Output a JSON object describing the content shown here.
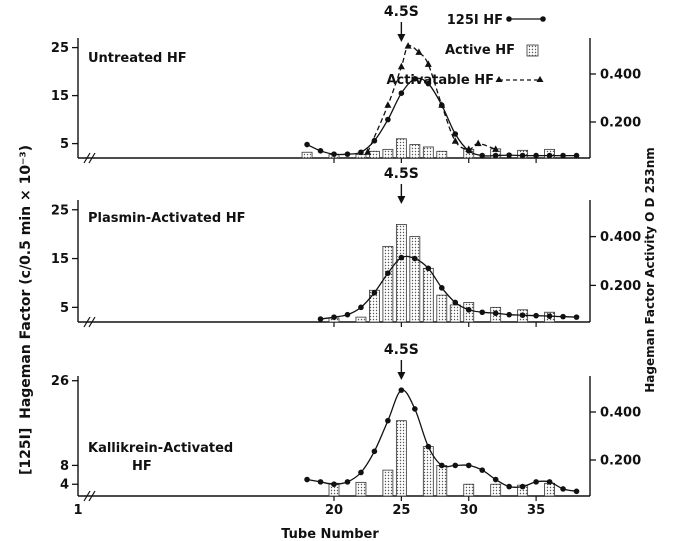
{
  "figure": {
    "x_label": "Tube Number",
    "left_label_prefix": "[125I]",
    "left_label": "Hageman Factor (c/0.5 min × 10⁻³)",
    "right_label": "Hageman Factor Activity O D  253nm"
  },
  "legend": {
    "i125": "125I HF",
    "active": "Active HF",
    "activatable": "Activatable HF"
  },
  "chart_data": [
    {
      "type": "line",
      "title": "Untreated HF",
      "marker_label": "4.5S",
      "marker_x": 25,
      "x_ticks": [],
      "xlim": [
        1,
        39
      ],
      "left_ticks": [
        5,
        15,
        25
      ],
      "ylim_left": [
        2,
        27
      ],
      "right_ticks": [
        "0.200",
        "0.400"
      ],
      "ylim_right": [
        0.05,
        0.55
      ],
      "series": [
        {
          "name": "125I HF",
          "axis": "left",
          "x": [
            18,
            19,
            20,
            21,
            22,
            23,
            24,
            25,
            26,
            27,
            28,
            29,
            30,
            31,
            32,
            33,
            34,
            35,
            36,
            37,
            38
          ],
          "y": [
            4.8,
            3.5,
            2.8,
            2.8,
            3.2,
            5.6,
            10,
            15.5,
            18.5,
            17.5,
            13,
            7,
            3.5,
            2.5,
            2.5,
            2.6,
            2.5,
            2.5,
            2.5,
            2.5,
            2.5
          ]
        },
        {
          "name": "Activatable HF",
          "axis": "left",
          "x": [
            22.5,
            24,
            25,
            25.5,
            26.3,
            27,
            28,
            29,
            30,
            30.7,
            32
          ],
          "y": [
            3.2,
            13,
            21,
            25.3,
            24,
            21.5,
            13,
            5.5,
            3.8,
            5,
            3.8
          ]
        },
        {
          "name": "Active HF",
          "axis": "left",
          "x": [
            18,
            20,
            22,
            23,
            24,
            25,
            26,
            27,
            28,
            30,
            32,
            34,
            36
          ],
          "y": [
            3.2,
            2.7,
            2.7,
            3.4,
            3.8,
            6,
            4.8,
            4.3,
            3.4,
            3.8,
            3.9,
            3.6,
            3.8
          ]
        }
      ]
    },
    {
      "type": "line",
      "title": "Plasmin-Activated HF",
      "marker_label": "4.5S",
      "marker_x": 25,
      "x_ticks": [],
      "xlim": [
        1,
        39
      ],
      "left_ticks": [
        5,
        15,
        25
      ],
      "ylim_left": [
        2,
        27
      ],
      "right_ticks": [
        "0.200",
        "0.400"
      ],
      "ylim_right": [
        0.05,
        0.55
      ],
      "series": [
        {
          "name": "125I HF",
          "axis": "left",
          "x": [
            19,
            20,
            21,
            22,
            23,
            24,
            25,
            26,
            27,
            28,
            29,
            30,
            31,
            32,
            33,
            34,
            35,
            36,
            37,
            38
          ],
          "y": [
            2.6,
            3,
            3.5,
            5,
            8,
            12,
            15.2,
            15,
            13,
            9,
            6,
            4.5,
            4,
            3.8,
            3.5,
            3.4,
            3.3,
            3.2,
            3.1,
            3
          ]
        },
        {
          "name": "Active HF",
          "axis": "left",
          "x": [
            20,
            22,
            23,
            24,
            25,
            26,
            27,
            28,
            29,
            30,
            32,
            34,
            36
          ],
          "y": [
            2.8,
            3,
            8.5,
            17.5,
            22,
            19.5,
            13,
            7.5,
            5.5,
            6,
            5,
            4.5,
            4
          ]
        }
      ]
    },
    {
      "type": "line",
      "title": "Kallikrein-Activated HF",
      "marker_label": "4.5S",
      "marker_x": 25,
      "x_ticks": [
        "1",
        "20",
        "25",
        "30",
        "35"
      ],
      "xlim": [
        1,
        39
      ],
      "left_ticks": [
        4,
        8,
        26
      ],
      "ylim_left": [
        1.5,
        27
      ],
      "right_ticks": [
        "0.200",
        "0.400"
      ],
      "ylim_right": [
        0.05,
        0.55
      ],
      "series": [
        {
          "name": "125I HF",
          "axis": "left",
          "x": [
            18,
            19,
            20,
            21,
            22,
            23,
            24,
            25,
            26,
            27,
            28,
            29,
            30,
            31,
            32,
            33,
            34,
            35,
            36,
            37,
            38
          ],
          "y": [
            5,
            4.5,
            4,
            4.5,
            6.5,
            11,
            17.5,
            24,
            20,
            12,
            8,
            8,
            8,
            7,
            5,
            3.5,
            3.5,
            4.5,
            4.5,
            3,
            2.5
          ]
        },
        {
          "name": "Active HF",
          "axis": "left",
          "x": [
            20,
            22,
            24,
            25,
            27,
            28,
            30,
            32,
            34,
            36
          ],
          "y": [
            4.2,
            4.4,
            7,
            17.5,
            12,
            8,
            4,
            4,
            3.8,
            4.2
          ]
        }
      ]
    }
  ]
}
